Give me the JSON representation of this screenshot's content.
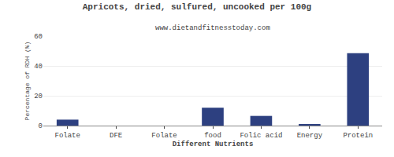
{
  "chart_data": {
    "type": "bar",
    "title": "Apricots, dried, sulfured, uncooked per 100g",
    "subtitle": "www.dietandfitnesstoday.com",
    "xlabel": "Different Nutrients",
    "ylabel": "Percentage of RDH (%)",
    "categories": [
      "Folate",
      "DFE",
      "Folate",
      "food",
      "Folic acid",
      "Energy",
      "Protein"
    ],
    "values": [
      4.0,
      0.0,
      0.0,
      12.0,
      6.5,
      1.0,
      48.5
    ],
    "color": "#2d4080",
    "ylim": [
      0,
      60
    ],
    "yticks": [
      0,
      20,
      40,
      60
    ],
    "grid": true
  }
}
